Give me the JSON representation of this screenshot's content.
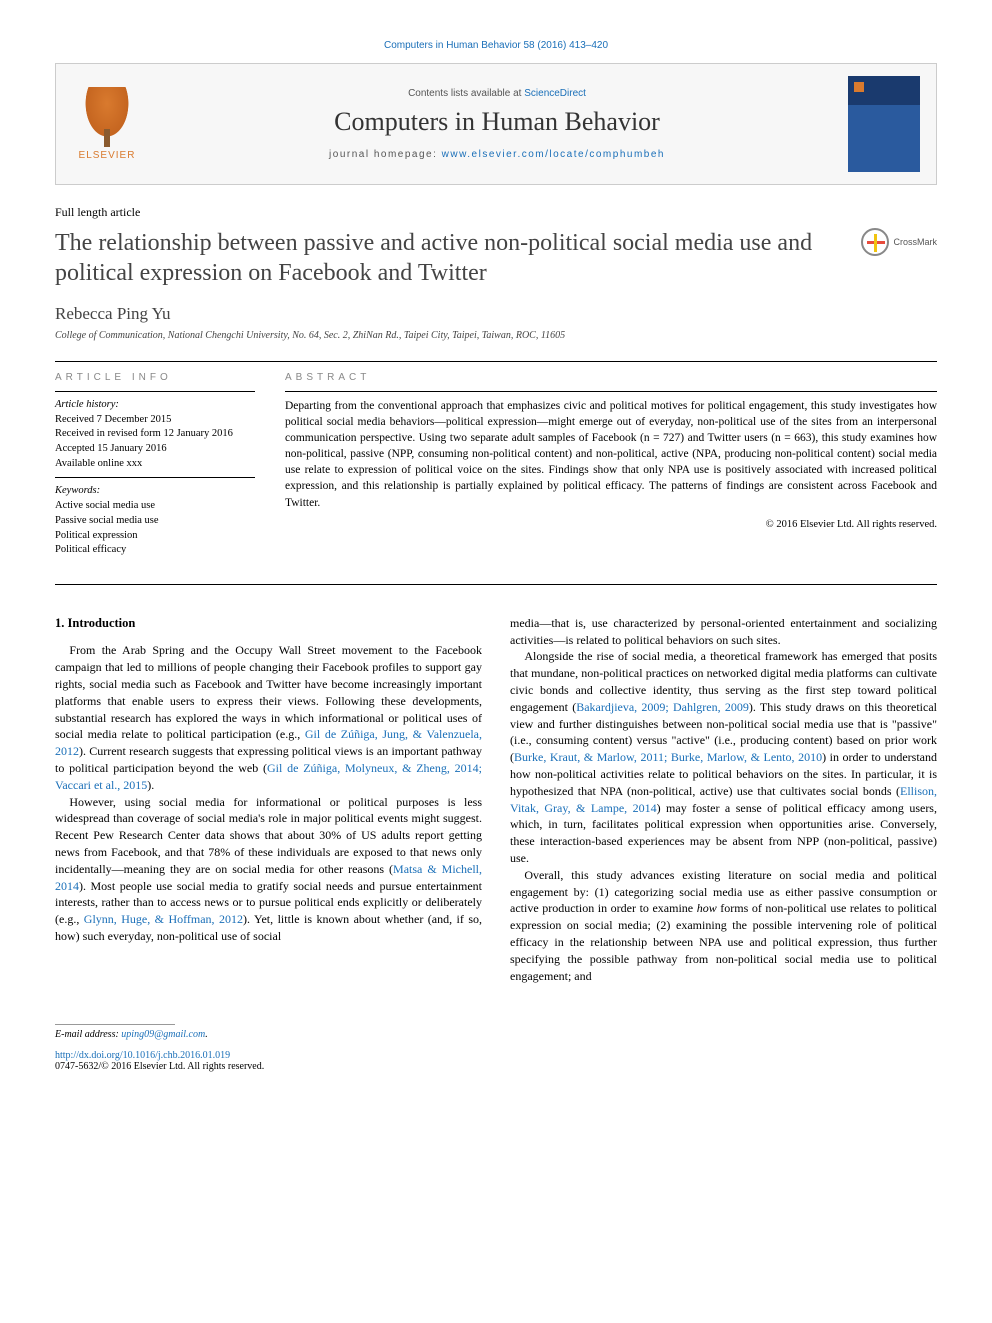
{
  "citation": "Computers in Human Behavior 58 (2016) 413–420",
  "header": {
    "contents_prefix": "Contents lists available at ",
    "contents_link": "ScienceDirect",
    "journal": "Computers in Human Behavior",
    "homepage_prefix": "journal homepage: ",
    "homepage_url": "www.elsevier.com/locate/comphumbeh",
    "publisher": "ELSEVIER"
  },
  "article_type": "Full length article",
  "title": "The relationship between passive and active non-political social media use and political expression on Facebook and Twitter",
  "crossmark": "CrossMark",
  "author": "Rebecca Ping Yu",
  "affiliation": "College of Communication, National Chengchi University, No. 64, Sec. 2, ZhiNan Rd., Taipei City, Taipei, Taiwan, ROC, 11605",
  "info_label": "ARTICLE INFO",
  "abstract_label": "ABSTRACT",
  "history": {
    "label": "Article history:",
    "received": "Received 7 December 2015",
    "revised": "Received in revised form 12 January 2016",
    "accepted": "Accepted 15 January 2016",
    "online": "Available online xxx"
  },
  "keywords": {
    "label": "Keywords:",
    "k1": "Active social media use",
    "k2": "Passive social media use",
    "k3": "Political expression",
    "k4": "Political efficacy"
  },
  "abstract": "Departing from the conventional approach that emphasizes civic and political motives for political engagement, this study investigates how political social media behaviors—political expression—might emerge out of everyday, non-political use of the sites from an interpersonal communication perspective. Using two separate adult samples of Facebook (n = 727) and Twitter users (n = 663), this study examines how non-political, passive (NPP, consuming non-political content) and non-political, active (NPA, producing non-political content) social media use relate to expression of political voice on the sites. Findings show that only NPA use is positively associated with increased political expression, and this relationship is partially explained by political efficacy. The patterns of findings are consistent across Facebook and Twitter.",
  "copyright": "© 2016 Elsevier Ltd. All rights reserved.",
  "section1_heading": "1. Introduction",
  "col1": {
    "p1a": "From the Arab Spring and the Occupy Wall Street movement to the Facebook campaign that led to millions of people changing their Facebook profiles to support gay rights, social media such as Facebook and Twitter have become increasingly important platforms that enable users to express their views. Following these developments, substantial research has explored the ways in which informational or political uses of social media relate to political participation (e.g., ",
    "p1_ref1": "Gil de Zúñiga, Jung, & Valenzuela, 2012",
    "p1b": "). Current research suggests that expressing political views is an important pathway to political participation beyond the web (",
    "p1_ref2": "Gil de Zúñiga, Molyneux, & Zheng, 2014; Vaccari et al., 2015",
    "p1c": ").",
    "p2a": "However, using social media for informational or political purposes is less widespread than coverage of social media's role in major political events might suggest. Recent Pew Research Center data shows that about 30% of US adults report getting news from Facebook, and that 78% of these individuals are exposed to that news only incidentally—meaning they are on social media for other reasons (",
    "p2_ref1": "Matsa & Michell, 2014",
    "p2b": "). Most people use social media to gratify social needs and pursue entertainment interests, rather than to access news or to pursue political ends explicitly or deliberately (e.g., ",
    "p2_ref2": "Glynn, Huge, & Hoffman, 2012",
    "p2c": "). Yet, little is known about whether (and, if so, how) such everyday, non-political use of social"
  },
  "col2": {
    "p1": "media—that is, use characterized by personal-oriented entertainment and socializing activities—is related to political behaviors on such sites.",
    "p2a": "Alongside the rise of social media, a theoretical framework has emerged that posits that mundane, non-political practices on networked digital media platforms can cultivate civic bonds and collective identity, thus serving as the first step toward political engagement (",
    "p2_ref1": "Bakardjieva, 2009; Dahlgren, 2009",
    "p2b": "). This study draws on this theoretical view and further distinguishes between non-political social media use that is \"passive\" (i.e., consuming content) versus \"active\" (i.e., producing content) based on prior work (",
    "p2_ref2": "Burke, Kraut, & Marlow, 2011; Burke, Marlow, & Lento, 2010",
    "p2c": ") in order to understand how non-political activities relate to political behaviors on the sites. In particular, it is hypothesized that NPA (non-political, active) use that cultivates social bonds (",
    "p2_ref3": "Ellison, Vitak, Gray, & Lampe, 2014",
    "p2d": ") may foster a sense of political efficacy among users, which, in turn, facilitates political expression when opportunities arise. Conversely, these interaction-based experiences may be absent from NPP (non-political, passive) use.",
    "p3a": "Overall, this study advances existing literature on social media and political engagement by: (1) categorizing social media use as either passive consumption or active production in order to examine ",
    "p3_i": "how",
    "p3b": " forms of non-political use relates to political expression on social media; (2) examining the possible intervening role of political efficacy in the relationship between NPA use and political expression, thus further specifying the possible pathway from non-political social media use to political engagement; and"
  },
  "footer": {
    "email_label": "E-mail address: ",
    "email": "uping09@gmail.com",
    "doi": "http://dx.doi.org/10.1016/j.chb.2016.01.019",
    "issn_line": "0747-5632/© 2016 Elsevier Ltd. All rights reserved."
  }
}
